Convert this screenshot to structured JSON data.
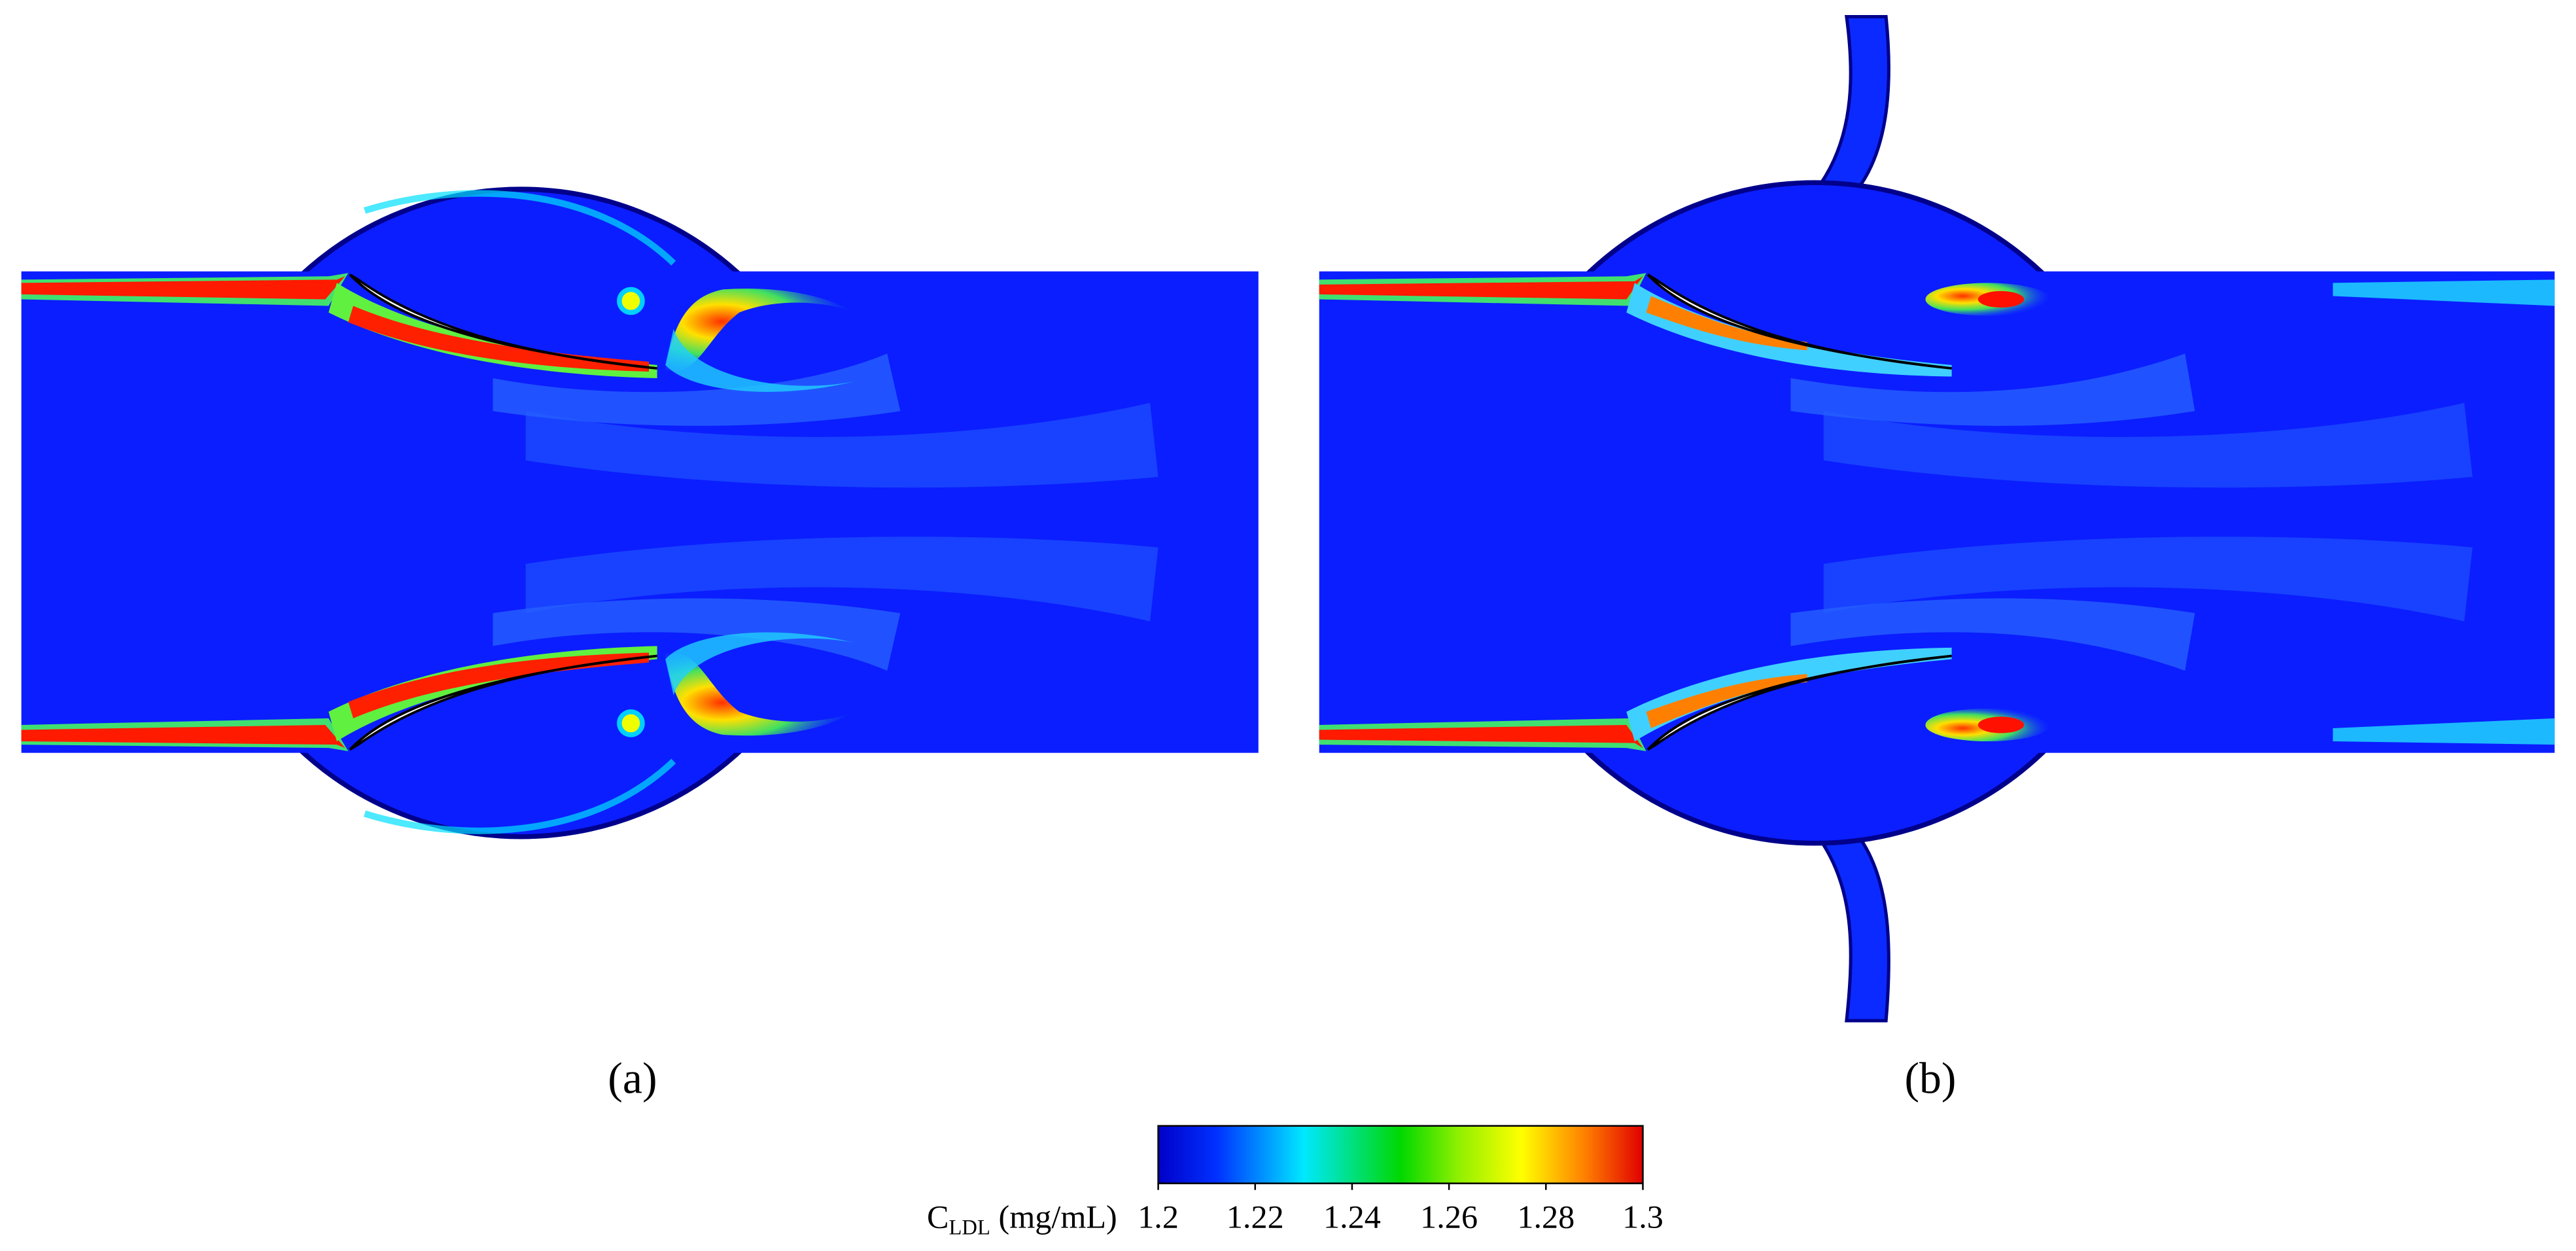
{
  "panels": [
    {
      "label": "(a)"
    },
    {
      "label": "(b)"
    }
  ],
  "colorbar": {
    "label_main": "C",
    "label_sub": "LDL",
    "label_unit": " (mg/mL)",
    "lim": [
      1.2,
      1.3
    ],
    "ticks": [
      1.2,
      1.22,
      1.24,
      1.26,
      1.28,
      1.3
    ]
  }
}
